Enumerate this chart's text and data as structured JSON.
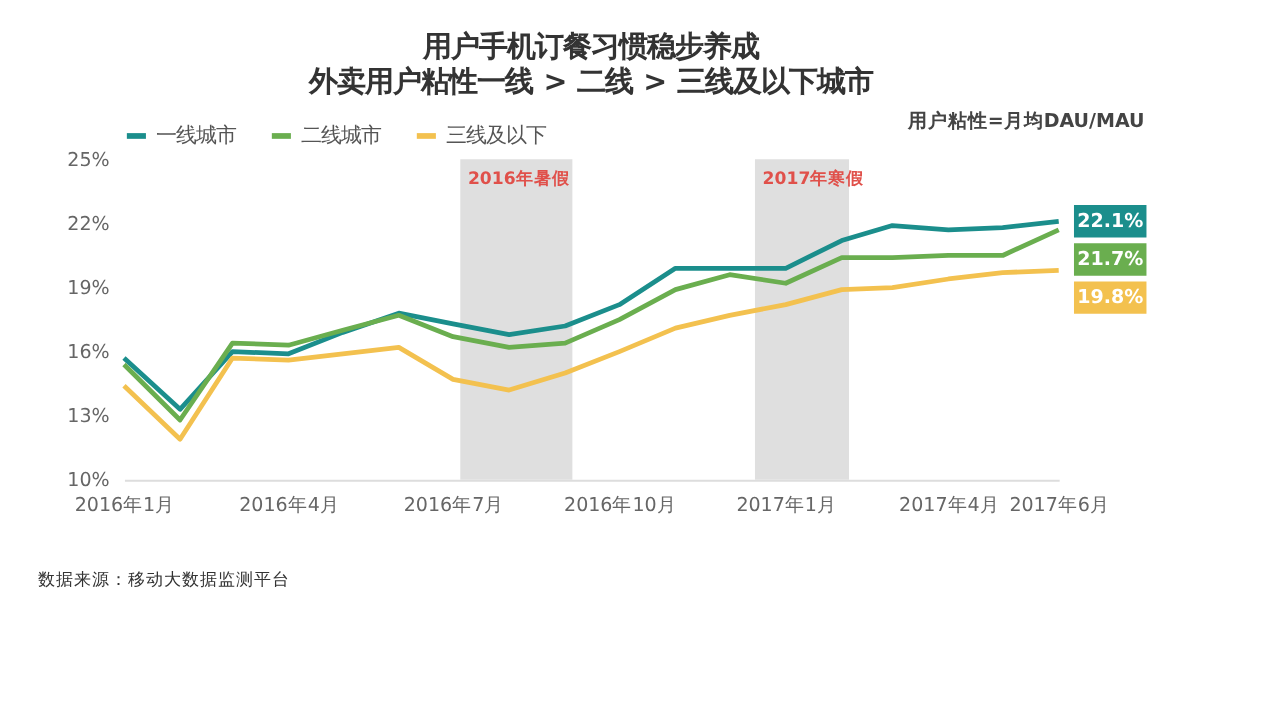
{
  "chart_data": {
    "type": "line",
    "title": "用户手机订餐习惯稳步养成",
    "subtitle": "外卖用户粘性一线 > 二线 > 三线及以下城市",
    "x": [
      "2016-01",
      "2016-02",
      "2016-03",
      "2016-04",
      "2016-05",
      "2016-06",
      "2016-07",
      "2016-08",
      "2016-09",
      "2016-10",
      "2016-11",
      "2016-12",
      "2017-01",
      "2017-02",
      "2017-03",
      "2017-04",
      "2017-05",
      "2017-06"
    ],
    "series": [
      {
        "name": "一线城市",
        "color": "#1b8e8c",
        "values": [
          15.7,
          13.3,
          16.0,
          15.9,
          16.9,
          17.8,
          17.3,
          16.8,
          17.2,
          18.2,
          19.9,
          19.9,
          19.9,
          21.2,
          21.9,
          21.7,
          21.8,
          22.1
        ],
        "value_labels": [
          null,
          null,
          null,
          null,
          null,
          null,
          null,
          null,
          null,
          null,
          null,
          null,
          null,
          null,
          null,
          null,
          null,
          "22.1%"
        ]
      },
      {
        "name": "二线城市",
        "color": "#6aae4f",
        "values": [
          15.4,
          12.8,
          16.4,
          16.3,
          17.0,
          17.7,
          16.7,
          16.2,
          16.4,
          17.5,
          18.9,
          19.6,
          19.2,
          20.4,
          20.4,
          20.5,
          20.5,
          21.7
        ],
        "value_labels": [
          null,
          null,
          null,
          null,
          null,
          null,
          null,
          null,
          null,
          null,
          null,
          null,
          null,
          null,
          null,
          null,
          null,
          "21.7%"
        ]
      },
      {
        "name": "三线及以下",
        "color": "#f3c14f",
        "values": [
          14.4,
          11.9,
          15.7,
          15.6,
          15.9,
          16.2,
          14.7,
          14.2,
          15.0,
          16.0,
          17.1,
          17.7,
          18.2,
          18.9,
          19.0,
          19.4,
          19.7,
          19.8
        ],
        "value_labels": [
          null,
          null,
          null,
          null,
          null,
          null,
          null,
          null,
          null,
          null,
          null,
          null,
          null,
          null,
          null,
          null,
          null,
          "19.8%"
        ]
      }
    ],
    "xlim": [
      "2016-01",
      "2017-06"
    ],
    "xticks": [
      {
        "value": "2016-01",
        "label": "2016年1月"
      },
      {
        "value": "2016-04",
        "label": "2016年4月"
      },
      {
        "value": "2016-07",
        "label": "2016年7月"
      },
      {
        "value": "2016-10",
        "label": "2016年10月"
      },
      {
        "value": "2017-01",
        "label": "2017年1月"
      },
      {
        "value": "2017-04",
        "label": "2017年4月"
      },
      {
        "value": "2017-06",
        "label": "2017年6月"
      }
    ],
    "ylim": [
      10,
      25
    ],
    "yticks": [
      {
        "value": 10,
        "label": "10%"
      },
      {
        "value": 13,
        "label": "13%"
      },
      {
        "value": 16,
        "label": "16%"
      },
      {
        "value": 19,
        "label": "19%"
      },
      {
        "value": 22,
        "label": "22%"
      },
      {
        "value": 25,
        "label": "25%"
      }
    ],
    "bands": [
      {
        "axis": "x",
        "from": "2016-07-05",
        "to": "2016-09-05",
        "label": "2016年暑假",
        "color": "#dcdcdc"
      },
      {
        "axis": "x",
        "from": "2016-12-15",
        "to": "2017-02-05",
        "label": "2017年寒假",
        "color": "#dcdcdc"
      }
    ],
    "annotations": [
      "用户粘性=月均DAU/MAU",
      "数据来源：移动大数据监测平台"
    ],
    "legend": "top left",
    "grid": false,
    "marker": "none",
    "line_style": "solid"
  }
}
